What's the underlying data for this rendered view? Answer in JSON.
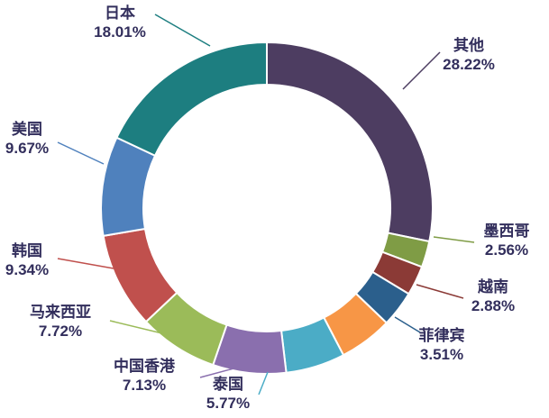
{
  "chart_data": {
    "type": "pie",
    "donut": true,
    "title": "",
    "start_angle_deg": 0,
    "direction": "clockwise",
    "legend": "none",
    "slices": [
      {
        "label": "其他",
        "value": 28.22,
        "pct_label": "28.22%",
        "color": "#4D3D61"
      },
      {
        "label": "墨西哥",
        "value": 2.56,
        "pct_label": "2.56%",
        "color": "#7F9C45"
      },
      {
        "label": "越南",
        "value": 2.88,
        "pct_label": "2.88%",
        "color": "#8B3A36"
      },
      {
        "label": "菲律宾",
        "value": 3.51,
        "pct_label": "3.51%",
        "color": "#2B5F8C"
      },
      {
        "label": "",
        "value": 5.19,
        "pct_label": "",
        "color": "#F79646"
      },
      {
        "label": "泰国",
        "value": 5.77,
        "pct_label": "5.77%",
        "color": "#4BACC6"
      },
      {
        "label": "中国香港",
        "value": 7.13,
        "pct_label": "7.13%",
        "color": "#8A6FAE"
      },
      {
        "label": "马来西亚",
        "value": 7.72,
        "pct_label": "7.72%",
        "color": "#9BBB59"
      },
      {
        "label": "韩国",
        "value": 9.34,
        "pct_label": "9.34%",
        "color": "#C0504D"
      },
      {
        "label": "美国",
        "value": 9.67,
        "pct_label": "9.67%",
        "color": "#4F81BD"
      },
      {
        "label": "日本",
        "value": 18.01,
        "pct_label": "18.01%",
        "color": "#1D7E80"
      }
    ],
    "label_text_color": "#322E5C"
  }
}
